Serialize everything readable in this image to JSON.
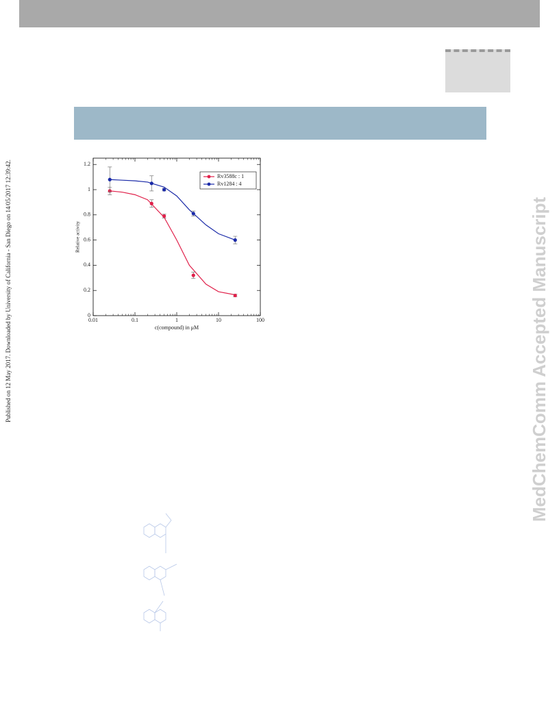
{
  "side_note": "Published on 12 May 2017. Downloaded by University of California - San Diego on 14/05/2017 12:39:42.",
  "watermark": "MedChemComm Accepted Manuscript",
  "chart_data": {
    "type": "scatter",
    "xlabel": "c(compound) in μM",
    "ylabel": "Relative activity",
    "xscale": "log",
    "xlim": [
      0.01,
      100
    ],
    "xticks": [
      0.01,
      0.1,
      1,
      10,
      100
    ],
    "ylim": [
      0,
      1.25
    ],
    "yticks": [
      0,
      0.2,
      0.4,
      0.6,
      0.8,
      1,
      1.2
    ],
    "legend": "upper right",
    "series": [
      {
        "name": "Rv3588c : 1",
        "color": "#e0204a",
        "x": [
          0.025,
          0.25,
          0.5,
          2.5,
          25
        ],
        "values": [
          0.99,
          0.89,
          0.79,
          0.32,
          0.16
        ],
        "errors": [
          0.03,
          0.03,
          0.015,
          0.025,
          0.01
        ]
      },
      {
        "name": "Rv1284 : 4",
        "color": "#1a2aa8",
        "x": [
          0.025,
          0.25,
          0.5,
          2.5,
          25
        ],
        "values": [
          1.08,
          1.05,
          1.0,
          0.81,
          0.6
        ],
        "errors": [
          0.1,
          0.06,
          0.01,
          0.02,
          0.03
        ]
      }
    ],
    "fits": [
      {
        "color": "#e0204a",
        "x": [
          0.025,
          0.05,
          0.1,
          0.2,
          0.5,
          1,
          2,
          5,
          10,
          25
        ],
        "values": [
          0.99,
          0.98,
          0.96,
          0.92,
          0.78,
          0.6,
          0.4,
          0.25,
          0.19,
          0.165
        ]
      },
      {
        "color": "#1a2aa8",
        "x": [
          0.025,
          0.05,
          0.1,
          0.2,
          0.5,
          1,
          2,
          5,
          10,
          25
        ],
        "values": [
          1.08,
          1.075,
          1.07,
          1.06,
          1.02,
          0.95,
          0.84,
          0.72,
          0.65,
          0.6
        ]
      }
    ]
  }
}
